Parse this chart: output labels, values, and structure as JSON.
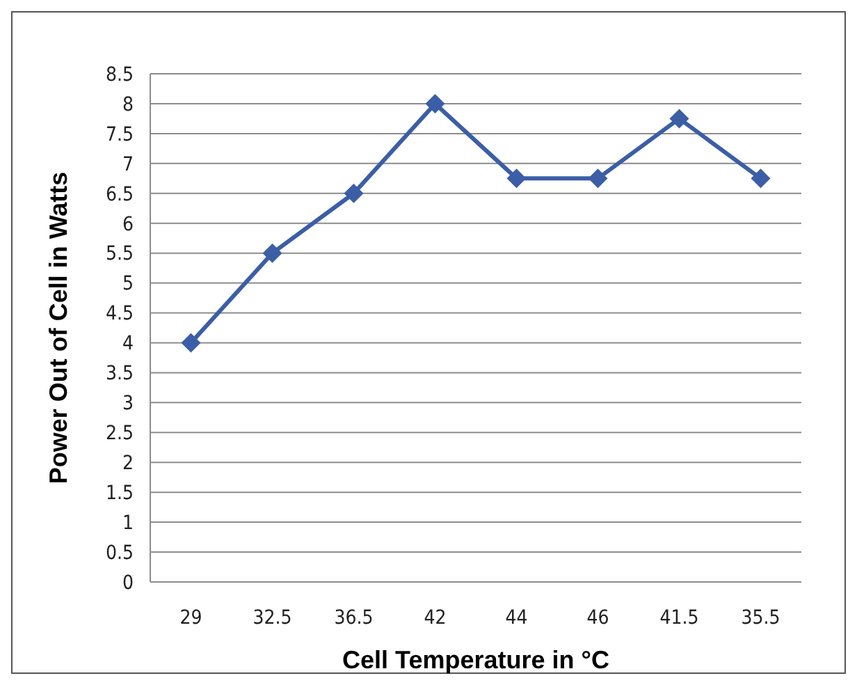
{
  "chart_data": {
    "type": "line",
    "xlabel": "Cell Temperature in °C",
    "ylabel": "Power Out of Cell in Watts",
    "categories": [
      "29",
      "32.5",
      "36.5",
      "42",
      "44",
      "46",
      "41.5",
      "35.5"
    ],
    "series": [
      {
        "color": "#3b5ea6",
        "values": [
          4,
          5.5,
          6.5,
          8,
          6.75,
          6.75,
          7.75,
          6.75
        ]
      }
    ],
    "ylim": [
      0,
      8.5
    ],
    "yticks": [
      0,
      0.5,
      1,
      1.5,
      2,
      2.5,
      3,
      3.5,
      4,
      4.5,
      5,
      5.5,
      6,
      6.5,
      7,
      7.5,
      8,
      8.5
    ],
    "grid": "y",
    "marker": "diamond",
    "line_style": "solid"
  }
}
